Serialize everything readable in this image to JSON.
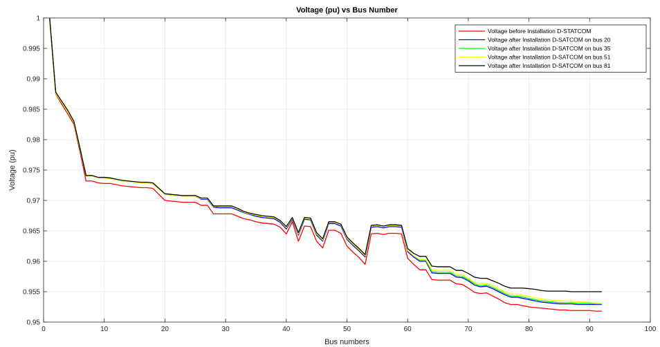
{
  "chart_data": {
    "type": "line",
    "title": "Voltage (pu) vs Bus Number",
    "xlabel": "Bus numbers",
    "ylabel": "Voltage (pu)",
    "xlim": [
      0,
      100
    ],
    "ylim": [
      0.95,
      1.0
    ],
    "xticks": [
      0,
      10,
      20,
      30,
      40,
      50,
      60,
      70,
      80,
      90,
      100
    ],
    "yticks": [
      0.95,
      0.955,
      0.96,
      0.965,
      0.97,
      0.975,
      0.98,
      0.985,
      0.99,
      0.995,
      1
    ],
    "grid": true,
    "legend_position": "top-right",
    "x": [
      1,
      2,
      3,
      4,
      5,
      6,
      7,
      8,
      9,
      10,
      11,
      12,
      13,
      14,
      15,
      16,
      17,
      18,
      19,
      20,
      21,
      22,
      23,
      24,
      25,
      26,
      27,
      28,
      29,
      30,
      31,
      32,
      33,
      34,
      35,
      36,
      37,
      38,
      39,
      40,
      41,
      42,
      43,
      44,
      45,
      46,
      47,
      48,
      49,
      50,
      51,
      52,
      53,
      54,
      55,
      56,
      57,
      58,
      59,
      60,
      61,
      62,
      63,
      64,
      65,
      66,
      67,
      68,
      69,
      70,
      71,
      72,
      73,
      74,
      75,
      76,
      77,
      78,
      79,
      80,
      81,
      82,
      83,
      84,
      85,
      86,
      87,
      88,
      89,
      90,
      91,
      92
    ],
    "series": [
      {
        "name": "Voltage before Installation  D-STATCOM",
        "color": "#ff0000",
        "values": [
          1.0,
          0.9875,
          0.9858,
          0.9842,
          0.9825,
          0.978,
          0.9732,
          0.9732,
          0.9729,
          0.9728,
          0.9728,
          0.9726,
          0.9724,
          0.9723,
          0.9722,
          0.9721,
          0.9721,
          0.972,
          0.971,
          0.97,
          0.9699,
          0.9698,
          0.9697,
          0.9697,
          0.9697,
          0.9692,
          0.9692,
          0.9678,
          0.9678,
          0.9678,
          0.9678,
          0.9674,
          0.967,
          0.9668,
          0.9665,
          0.9663,
          0.9662,
          0.9661,
          0.9656,
          0.9645,
          0.9665,
          0.9633,
          0.9658,
          0.9657,
          0.9633,
          0.9622,
          0.9651,
          0.9651,
          0.9646,
          0.9625,
          0.9615,
          0.9606,
          0.9595,
          0.9645,
          0.9646,
          0.9644,
          0.9646,
          0.9646,
          0.9645,
          0.9605,
          0.9595,
          0.9586,
          0.9586,
          0.957,
          0.9569,
          0.9569,
          0.9569,
          0.9563,
          0.9562,
          0.9556,
          0.9549,
          0.9547,
          0.9548,
          0.9543,
          0.9538,
          0.9532,
          0.9529,
          0.9529,
          0.9527,
          0.9525,
          0.9524,
          0.9523,
          0.9522,
          0.9521,
          0.952,
          0.952,
          0.9519,
          0.9519,
          0.9519,
          0.9519,
          0.9518,
          0.9518
        ]
      },
      {
        "name": "Voltage after Installation D-SATCOM on bus 20",
        "color": "#0000ff",
        "values": [
          1.0,
          0.9876,
          0.9861,
          0.9846,
          0.9828,
          0.9784,
          0.974,
          0.974,
          0.9737,
          0.9737,
          0.9736,
          0.9734,
          0.9732,
          0.9731,
          0.973,
          0.9729,
          0.9729,
          0.9728,
          0.9719,
          0.971,
          0.9709,
          0.9708,
          0.9707,
          0.9707,
          0.9707,
          0.9702,
          0.9702,
          0.9689,
          0.9688,
          0.9688,
          0.9688,
          0.9684,
          0.968,
          0.9677,
          0.9674,
          0.9672,
          0.9671,
          0.967,
          0.9664,
          0.9653,
          0.9669,
          0.9643,
          0.9669,
          0.9668,
          0.9643,
          0.9633,
          0.9662,
          0.9662,
          0.9658,
          0.9636,
          0.9626,
          0.9617,
          0.9607,
          0.9656,
          0.9657,
          0.9655,
          0.9657,
          0.9657,
          0.9656,
          0.9616,
          0.9607,
          0.96,
          0.96,
          0.9581,
          0.958,
          0.958,
          0.958,
          0.9574,
          0.9573,
          0.9568,
          0.9561,
          0.9558,
          0.9559,
          0.9555,
          0.955,
          0.9545,
          0.9541,
          0.9541,
          0.9539,
          0.9537,
          0.9535,
          0.9533,
          0.9532,
          0.9531,
          0.953,
          0.953,
          0.953,
          0.9529,
          0.9529,
          0.9529,
          0.9529,
          0.9529
        ]
      },
      {
        "name": "Voltage after Installation D-SATCOM on bus 35",
        "color": "#00ff00",
        "values": [
          1.0,
          0.9876,
          0.9861,
          0.9846,
          0.9828,
          0.9784,
          0.974,
          0.974,
          0.9737,
          0.9737,
          0.9736,
          0.9734,
          0.9732,
          0.9731,
          0.973,
          0.9729,
          0.9729,
          0.9728,
          0.9719,
          0.971,
          0.9709,
          0.9708,
          0.9707,
          0.9707,
          0.9707,
          0.9703,
          0.9703,
          0.969,
          0.969,
          0.969,
          0.969,
          0.9686,
          0.9681,
          0.9678,
          0.9676,
          0.9674,
          0.9673,
          0.9672,
          0.9666,
          0.9655,
          0.9671,
          0.9645,
          0.9671,
          0.967,
          0.9645,
          0.9635,
          0.9664,
          0.9664,
          0.966,
          0.9638,
          0.9628,
          0.9619,
          0.9609,
          0.9658,
          0.9659,
          0.9657,
          0.9659,
          0.9659,
          0.9658,
          0.9618,
          0.9609,
          0.9602,
          0.9602,
          0.9583,
          0.9582,
          0.9582,
          0.9582,
          0.9576,
          0.9575,
          0.957,
          0.9563,
          0.956,
          0.9561,
          0.9557,
          0.9552,
          0.9547,
          0.9543,
          0.9543,
          0.9541,
          0.9539,
          0.9537,
          0.9535,
          0.9534,
          0.9533,
          0.9532,
          0.9532,
          0.9532,
          0.9531,
          0.9531,
          0.9531,
          0.953,
          0.953
        ]
      },
      {
        "name": "Voltage after Installation D-SATCOM on bus 51",
        "color": "#ffff00",
        "values": [
          1.0,
          0.9876,
          0.9861,
          0.9846,
          0.9828,
          0.9784,
          0.974,
          0.974,
          0.9737,
          0.9737,
          0.9736,
          0.9734,
          0.9732,
          0.9731,
          0.973,
          0.9729,
          0.9729,
          0.9728,
          0.9719,
          0.971,
          0.9709,
          0.9708,
          0.9707,
          0.9707,
          0.9707,
          0.9703,
          0.9703,
          0.969,
          0.969,
          0.969,
          0.969,
          0.9686,
          0.9681,
          0.9678,
          0.9676,
          0.9674,
          0.9673,
          0.9672,
          0.9666,
          0.9655,
          0.9671,
          0.9645,
          0.9671,
          0.967,
          0.9645,
          0.9635,
          0.9664,
          0.9664,
          0.966,
          0.9638,
          0.9628,
          0.9619,
          0.9609,
          0.9658,
          0.9659,
          0.9657,
          0.9659,
          0.9659,
          0.9658,
          0.9618,
          0.9609,
          0.9603,
          0.9603,
          0.9586,
          0.9585,
          0.9585,
          0.9585,
          0.9579,
          0.9578,
          0.9572,
          0.9565,
          0.9563,
          0.9564,
          0.956,
          0.9555,
          0.955,
          0.9546,
          0.9546,
          0.9544,
          0.9542,
          0.954,
          0.9538,
          0.9537,
          0.9536,
          0.9535,
          0.9535,
          0.9534,
          0.9534,
          0.9533,
          0.9533,
          0.9531,
          0.9531
        ]
      },
      {
        "name": "Voltage after Installation D-SATCOM on bus 81",
        "color": "#000000",
        "values": [
          1.0,
          0.9878,
          0.9863,
          0.9848,
          0.983,
          0.9786,
          0.9741,
          0.9741,
          0.9738,
          0.9738,
          0.9737,
          0.9735,
          0.9733,
          0.9732,
          0.9731,
          0.973,
          0.973,
          0.9729,
          0.972,
          0.9711,
          0.971,
          0.9709,
          0.9708,
          0.9708,
          0.9708,
          0.9704,
          0.9704,
          0.9691,
          0.9691,
          0.9691,
          0.9691,
          0.9687,
          0.9682,
          0.9679,
          0.9677,
          0.9675,
          0.9674,
          0.9673,
          0.9667,
          0.9657,
          0.9672,
          0.9647,
          0.9672,
          0.9671,
          0.9647,
          0.9637,
          0.9665,
          0.9665,
          0.9661,
          0.964,
          0.963,
          0.9621,
          0.9611,
          0.9659,
          0.966,
          0.9658,
          0.966,
          0.966,
          0.9659,
          0.9621,
          0.9613,
          0.9608,
          0.9608,
          0.9592,
          0.9591,
          0.9591,
          0.9591,
          0.9585,
          0.9585,
          0.958,
          0.9574,
          0.9572,
          0.9572,
          0.9568,
          0.9564,
          0.9559,
          0.9556,
          0.9556,
          0.9556,
          0.9555,
          0.9554,
          0.9552,
          0.9551,
          0.9551,
          0.9551,
          0.9551,
          0.955,
          0.955,
          0.955,
          0.955,
          0.955,
          0.955
        ]
      }
    ]
  }
}
